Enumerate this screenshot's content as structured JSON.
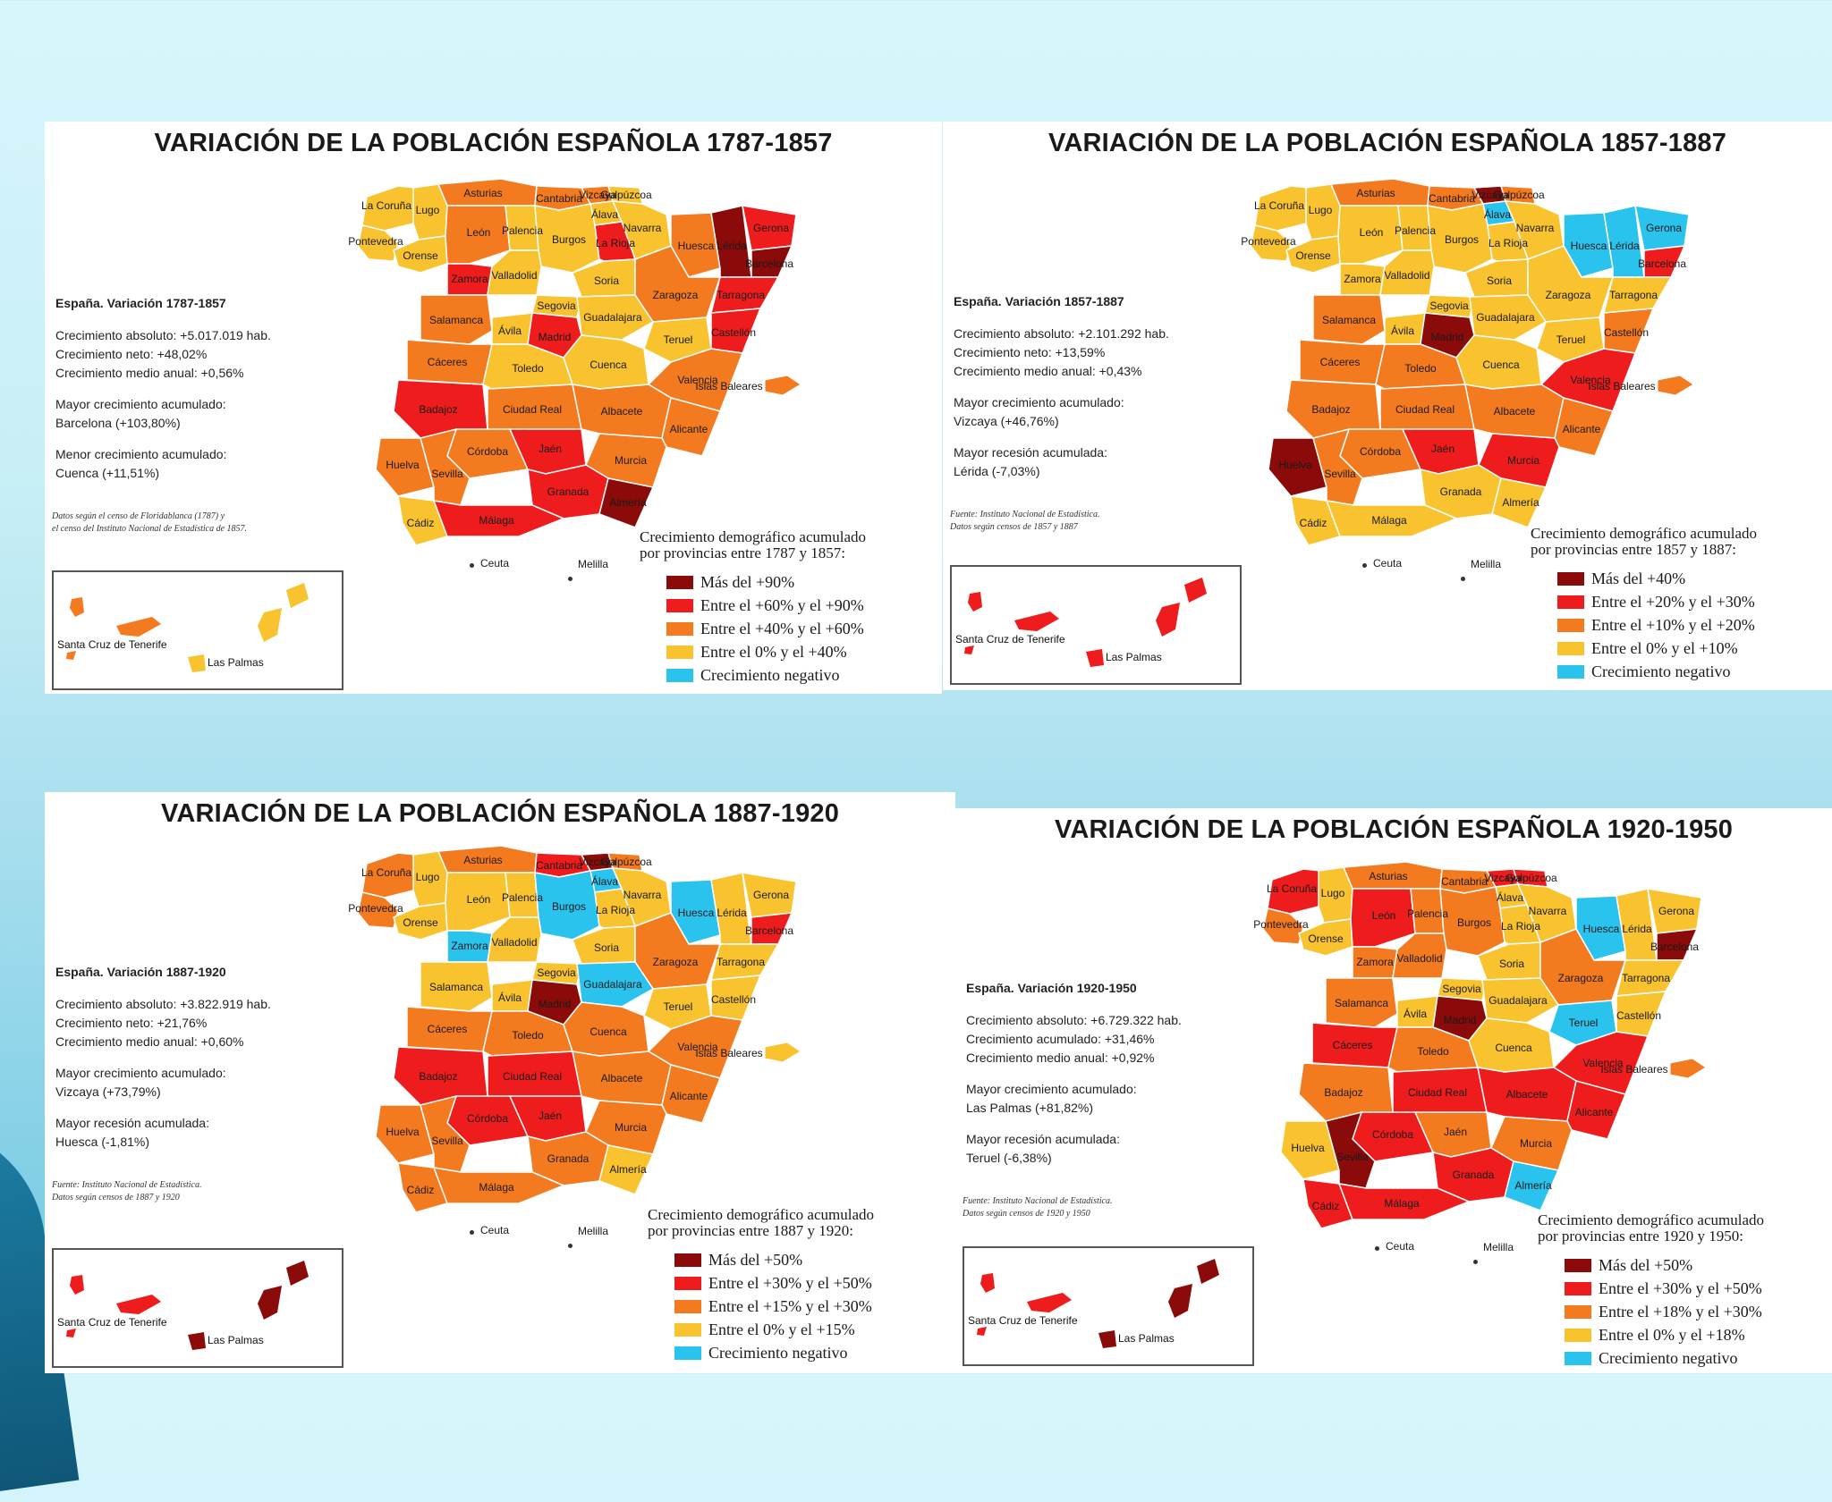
{
  "colors": {
    "dark_red": "#8b0a0a",
    "red": "#ee1c1c",
    "orange": "#f47a20",
    "yellow": "#f8c32f",
    "cyan": "#29c3ee"
  },
  "panels": [
    {
      "title": "VARIACIÓN DE LA POBLACIÓN ESPAÑOLA 1787-1857",
      "stats": {
        "title": "España. Variación 1787-1857",
        "lines": [
          "Crecimiento absoluto: +5.017.019 hab.",
          "Crecimiento neto: +48,02%",
          "Crecimiento medio anual: +0,56%",
          "",
          "Mayor crecimiento acumulado:",
          "Barcelona (+103,80%)",
          "",
          "Menor crecimiento acumulado:",
          "Cuenca (+11,51%)"
        ]
      },
      "source": [
        "Datos según el censo de Floridablanca (1787) y",
        "el censo del Instituto Nacional de Estadística de 1857."
      ],
      "legend": {
        "title": [
          "Crecimiento demográfico acumulado",
          "por provincias entre 1787 y 1857:"
        ],
        "items": [
          {
            "label": "Más del +90%",
            "color": "#8b0a0a"
          },
          {
            "label": "Entre el +60% y el +90%",
            "color": "#ee1c1c"
          },
          {
            "label": "Entre el +40% y el +60%",
            "color": "#f47a20"
          },
          {
            "label": "Entre el 0% y el +40%",
            "color": "#f8c32f"
          },
          {
            "label": "Crecimiento negativo",
            "color": "#29c3ee"
          }
        ]
      },
      "provinces": {
        "La Coruña": "yellow",
        "Lugo": "yellow",
        "Asturias": "orange",
        "Cantabria": "orange",
        "Vizcaya": "orange",
        "Gulpúzcoa": "yellow",
        "Álava": "yellow",
        "Navarra": "yellow",
        "Huesca": "orange",
        "Lérida": "dark_red",
        "Gerona": "red",
        "Barcelona": "dark_red",
        "Pontevedra": "yellow",
        "Orense": "yellow",
        "León": "orange",
        "Palencia": "yellow",
        "Burgos": "yellow",
        "La Rioja": "red",
        "Zamora": "red",
        "Valladolid": "yellow",
        "Soria": "yellow",
        "Zaragoza": "orange",
        "Tarragona": "red",
        "Segovia": "yellow",
        "Salamanca": "orange",
        "Guadalajara": "yellow",
        "Teruel": "yellow",
        "Ávila": "yellow",
        "Madrid": "red",
        "Castellón": "red",
        "Cáceres": "orange",
        "Toledo": "yellow",
        "Cuenca": "yellow",
        "Valencia": "orange",
        "Islas Baleares": "orange",
        "Badajoz": "red",
        "Ciudad Real": "orange",
        "Albacete": "orange",
        "Alicante": "orange",
        "Córdoba": "orange",
        "Jaén": "red",
        "Murcia": "orange",
        "Huelva": "orange",
        "Sevilla": "orange",
        "Granada": "red",
        "Almería": "dark_red",
        "Cádiz": "yellow",
        "Málaga": "red",
        "Santa Cruz de Tenerife": "orange",
        "Las Palmas": "yellow"
      },
      "places": {
        "ceuta": "Ceuta",
        "melilla": "Melilla"
      }
    },
    {
      "title": "VARIACIÓN DE LA POBLACIÓN ESPAÑOLA 1857-1887",
      "stats": {
        "title": "España. Variación 1857-1887",
        "lines": [
          "Crecimiento absoluto: +2.101.292 hab.",
          "Crecimiento neto: +13,59%",
          "Crecimiento medio anual: +0,43%",
          "",
          "Mayor crecimiento acumulado:",
          "Vizcaya (+46,76%)",
          "",
          "Mayor recesión acumulada:",
          "Lérida (-7,03%)"
        ]
      },
      "source": [
        "Fuente: Instituto Nacional de Estadística.",
        "Datos según censos de 1857 y 1887"
      ],
      "legend": {
        "title": [
          "Crecimiento demográfico acumulado",
          "por provincias entre 1857 y 1887:"
        ],
        "items": [
          {
            "label": "Más del +40%",
            "color": "#8b0a0a"
          },
          {
            "label": "Entre el +20% y el +30%",
            "color": "#ee1c1c"
          },
          {
            "label": "Entre el +10% y el +20%",
            "color": "#f47a20"
          },
          {
            "label": "Entre el 0% y el +10%",
            "color": "#f8c32f"
          },
          {
            "label": "Crecimiento negativo",
            "color": "#29c3ee"
          }
        ]
      },
      "provinces": {
        "La Coruña": "yellow",
        "Lugo": "yellow",
        "Asturias": "orange",
        "Cantabria": "orange",
        "Vizcaya": "dark_red",
        "Gulpúzcoa": "orange",
        "Álava": "cyan",
        "Navarra": "yellow",
        "Huesca": "cyan",
        "Lérida": "cyan",
        "Gerona": "cyan",
        "Barcelona": "red",
        "Pontevedra": "yellow",
        "Orense": "yellow",
        "León": "yellow",
        "Palencia": "yellow",
        "Burgos": "yellow",
        "La Rioja": "yellow",
        "Zamora": "yellow",
        "Valladolid": "yellow",
        "Soria": "yellow",
        "Zaragoza": "yellow",
        "Tarragona": "yellow",
        "Segovia": "yellow",
        "Salamanca": "orange",
        "Guadalajara": "yellow",
        "Teruel": "yellow",
        "Ávila": "yellow",
        "Madrid": "dark_red",
        "Castellón": "orange",
        "Cáceres": "orange",
        "Toledo": "orange",
        "Cuenca": "yellow",
        "Valencia": "red",
        "Islas Baleares": "orange",
        "Badajoz": "orange",
        "Ciudad Real": "orange",
        "Albacete": "orange",
        "Alicante": "orange",
        "Córdoba": "orange",
        "Jaén": "red",
        "Murcia": "red",
        "Huelva": "dark_red",
        "Sevilla": "orange",
        "Granada": "yellow",
        "Almería": "yellow",
        "Cádiz": "yellow",
        "Málaga": "yellow",
        "Santa Cruz de Tenerife": "red",
        "Las Palmas": "red"
      },
      "places": {
        "ceuta": "Ceuta",
        "melilla": "Melilla"
      }
    },
    {
      "title": "VARIACIÓN DE LA POBLACIÓN ESPAÑOLA 1887-1920",
      "stats": {
        "title": "España. Variación 1887-1920",
        "lines": [
          "Crecimiento absoluto: +3.822.919 hab.",
          "Crecimiento neto: +21,76%",
          "Crecimiento medio anual: +0,60%",
          "",
          "Mayor crecimiento acumulado:",
          "Vizcaya (+73,79%)",
          "",
          "Mayor recesión acumulada:",
          "Huesca (-1,81%)"
        ]
      },
      "source": [
        "Fuente: Instituto Nacional de Estadística.",
        "Datos según censos de 1887 y 1920"
      ],
      "legend": {
        "title": [
          "Crecimiento demográfico acumulado",
          "por provincias entre 1887 y 1920:"
        ],
        "items": [
          {
            "label": "Más del +50%",
            "color": "#8b0a0a"
          },
          {
            "label": "Entre el +30% y el +50%",
            "color": "#ee1c1c"
          },
          {
            "label": "Entre el +15% y el +30%",
            "color": "#f47a20"
          },
          {
            "label": "Entre el 0% y el +15%",
            "color": "#f8c32f"
          },
          {
            "label": "Crecimiento negativo",
            "color": "#29c3ee"
          }
        ]
      },
      "provinces": {
        "La Coruña": "orange",
        "Lugo": "yellow",
        "Asturias": "orange",
        "Cantabria": "red",
        "Vizcaya": "dark_red",
        "Gulpúzcoa": "orange",
        "Álava": "cyan",
        "Navarra": "yellow",
        "Huesca": "cyan",
        "Lérida": "yellow",
        "Gerona": "yellow",
        "Barcelona": "red",
        "Pontevedra": "orange",
        "Orense": "yellow",
        "León": "yellow",
        "Palencia": "yellow",
        "Burgos": "cyan",
        "La Rioja": "yellow",
        "Zamora": "cyan",
        "Valladolid": "yellow",
        "Soria": "yellow",
        "Zaragoza": "orange",
        "Tarragona": "yellow",
        "Segovia": "yellow",
        "Salamanca": "yellow",
        "Guadalajara": "cyan",
        "Teruel": "yellow",
        "Ávila": "yellow",
        "Madrid": "dark_red",
        "Castellón": "yellow",
        "Cáceres": "orange",
        "Toledo": "orange",
        "Cuenca": "orange",
        "Valencia": "orange",
        "Islas Baleares": "yellow",
        "Badajoz": "red",
        "Ciudad Real": "red",
        "Albacete": "orange",
        "Alicante": "orange",
        "Córdoba": "red",
        "Jaén": "red",
        "Murcia": "orange",
        "Huelva": "orange",
        "Sevilla": "orange",
        "Granada": "orange",
        "Almería": "yellow",
        "Cádiz": "orange",
        "Málaga": "orange",
        "Santa Cruz de Tenerife": "red",
        "Las Palmas": "dark_red"
      },
      "places": {
        "ceuta": "Ceuta",
        "melilla": "Melilla"
      }
    },
    {
      "title": "VARIACIÓN DE LA POBLACIÓN ESPAÑOLA 1920-1950",
      "stats": {
        "title": "España. Variación 1920-1950",
        "lines": [
          "Crecimiento absoluto: +6.729.322 hab.",
          "Crecimiento acumulado: +31,46%",
          "Crecimiento medio anual: +0,92%",
          "",
          "Mayor crecimiento acumulado:",
          "Las Palmas (+81,82%)",
          "",
          "Mayor recesión acumulada:",
          "Teruel (-6,38%)"
        ]
      },
      "source": [
        "Fuente: Instituto Nacional de Estadística.",
        "Datos según censos de 1920 y 1950"
      ],
      "legend": {
        "title": [
          "Crecimiento demográfico acumulado",
          "por provincias entre 1920 y 1950:"
        ],
        "items": [
          {
            "label": "Más del +50%",
            "color": "#8b0a0a"
          },
          {
            "label": "Entre el +30% y el +50%",
            "color": "#ee1c1c"
          },
          {
            "label": "Entre el +18% y el +30%",
            "color": "#f47a20"
          },
          {
            "label": "Entre el 0% y el +18%",
            "color": "#f8c32f"
          },
          {
            "label": "Crecimiento negativo",
            "color": "#29c3ee"
          }
        ]
      },
      "provinces": {
        "La Coruña": "red",
        "Lugo": "yellow",
        "Asturias": "orange",
        "Cantabria": "orange",
        "Vizcaya": "red",
        "Gulpúzcoa": "red",
        "Álava": "yellow",
        "Navarra": "yellow",
        "Huesca": "cyan",
        "Lérida": "yellow",
        "Gerona": "yellow",
        "Barcelona": "dark_red",
        "Pontevedra": "orange",
        "Orense": "yellow",
        "León": "red",
        "Palencia": "orange",
        "Burgos": "orange",
        "La Rioja": "yellow",
        "Zamora": "orange",
        "Valladolid": "orange",
        "Soria": "yellow",
        "Zaragoza": "orange",
        "Tarragona": "yellow",
        "Segovia": "yellow",
        "Salamanca": "orange",
        "Guadalajara": "yellow",
        "Teruel": "cyan",
        "Ávila": "yellow",
        "Madrid": "dark_red",
        "Castellón": "yellow",
        "Cáceres": "red",
        "Toledo": "orange",
        "Cuenca": "yellow",
        "Valencia": "red",
        "Islas Baleares": "orange",
        "Badajoz": "orange",
        "Ciudad Real": "red",
        "Albacete": "red",
        "Alicante": "red",
        "Córdoba": "red",
        "Jaén": "orange",
        "Murcia": "orange",
        "Huelva": "yellow",
        "Sevilla": "dark_red",
        "Granada": "red",
        "Almería": "cyan",
        "Cádiz": "red",
        "Málaga": "red",
        "Santa Cruz de Tenerife": "red",
        "Las Palmas": "dark_red"
      },
      "places": {
        "ceuta": "Ceuta",
        "melilla": "Melilla"
      }
    }
  ]
}
